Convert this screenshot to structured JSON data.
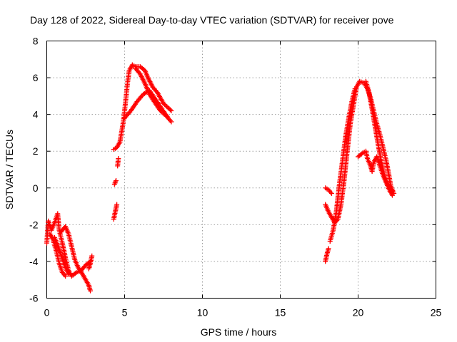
{
  "chart_data": {
    "type": "scatter",
    "title": "Day 128 of 2022, Sidereal Day-to-day VTEC variation (SDTVAR) for receiver pove",
    "xlabel": "GPS time / hours",
    "ylabel": "SDTVAR / TECUs",
    "xlim": [
      0,
      25
    ],
    "ylim": [
      -6,
      8
    ],
    "xticks": [
      0,
      5,
      10,
      15,
      20,
      25
    ],
    "yticks": [
      -6,
      -4,
      -2,
      0,
      2,
      4,
      6,
      8
    ],
    "grid": true,
    "legend": "none",
    "marker": "+",
    "series": [
      {
        "name": "SDTVAR",
        "color": "#ff0000",
        "segments": [
          [
            [
              0.0,
              -3.0
            ],
            [
              0.1,
              -1.8
            ],
            [
              0.3,
              -2.3
            ],
            [
              0.5,
              -1.9
            ],
            [
              0.7,
              -1.4
            ],
            [
              0.8,
              -2.3
            ],
            [
              1.0,
              -3.0
            ],
            [
              1.2,
              -3.8
            ],
            [
              1.4,
              -4.5
            ],
            [
              1.6,
              -4.8
            ],
            [
              1.9,
              -4.6
            ],
            [
              2.2,
              -4.5
            ],
            [
              2.5,
              -4.2
            ],
            [
              2.8,
              -4.0
            ]
          ],
          [
            [
              0.2,
              -2.5
            ],
            [
              0.4,
              -2.8
            ],
            [
              0.6,
              -3.4
            ],
            [
              0.8,
              -4.1
            ],
            [
              1.0,
              -4.6
            ],
            [
              1.2,
              -4.8
            ]
          ],
          [
            [
              0.9,
              -2.4
            ],
            [
              1.2,
              -2.1
            ],
            [
              1.4,
              -2.5
            ],
            [
              1.6,
              -3.2
            ],
            [
              1.8,
              -3.9
            ],
            [
              2.0,
              -4.3
            ],
            [
              2.3,
              -4.7
            ],
            [
              2.5,
              -5.0
            ],
            [
              2.7,
              -5.3
            ],
            [
              2.8,
              -5.6
            ]
          ],
          [
            [
              0.5,
              -2.7
            ],
            [
              0.7,
              -3.1
            ],
            [
              0.9,
              -3.6
            ],
            [
              1.1,
              -4.1
            ],
            [
              1.4,
              -4.7
            ]
          ],
          [
            [
              2.7,
              -4.4
            ],
            [
              2.8,
              -4.1
            ],
            [
              2.9,
              -3.7
            ]
          ],
          [
            [
              4.3,
              -1.7
            ],
            [
              4.4,
              -1.3
            ],
            [
              4.5,
              -0.9
            ]
          ],
          [
            [
              4.35,
              0.2
            ],
            [
              4.45,
              0.4
            ]
          ],
          [
            [
              4.55,
              1.2
            ],
            [
              4.6,
              1.6
            ]
          ],
          [
            [
              4.3,
              2.1
            ],
            [
              4.5,
              2.2
            ],
            [
              4.7,
              2.5
            ],
            [
              4.9,
              3.5
            ],
            [
              5.0,
              4.2
            ],
            [
              5.1,
              5.0
            ],
            [
              5.2,
              5.8
            ],
            [
              5.3,
              6.4
            ],
            [
              5.5,
              6.7
            ],
            [
              5.7,
              6.6
            ],
            [
              6.0,
              6.6
            ],
            [
              6.3,
              6.4
            ],
            [
              6.5,
              6.0
            ],
            [
              6.8,
              5.5
            ],
            [
              7.1,
              5.2
            ],
            [
              7.5,
              4.6
            ],
            [
              8.0,
              4.2
            ]
          ],
          [
            [
              5.0,
              3.8
            ],
            [
              5.4,
              4.2
            ],
            [
              5.8,
              4.7
            ],
            [
              6.2,
              5.1
            ],
            [
              6.6,
              5.3
            ],
            [
              7.0,
              4.8
            ],
            [
              7.4,
              4.3
            ],
            [
              7.8,
              3.8
            ],
            [
              8.0,
              3.6
            ]
          ],
          [
            [
              5.7,
              6.5
            ],
            [
              6.0,
              6.2
            ],
            [
              6.3,
              5.7
            ],
            [
              6.6,
              5.1
            ],
            [
              6.9,
              4.7
            ],
            [
              7.3,
              4.2
            ],
            [
              7.7,
              3.9
            ]
          ],
          [
            [
              17.9,
              -4.0
            ],
            [
              18.0,
              -3.6
            ],
            [
              18.1,
              -3.3
            ]
          ],
          [
            [
              17.9,
              -0.9
            ],
            [
              18.1,
              -1.3
            ],
            [
              18.3,
              -1.6
            ],
            [
              18.5,
              -1.9
            ],
            [
              18.7,
              -1.7
            ],
            [
              18.9,
              -0.9
            ],
            [
              19.1,
              0.4
            ],
            [
              19.3,
              2.0
            ],
            [
              19.5,
              3.5
            ],
            [
              19.7,
              4.5
            ],
            [
              19.9,
              5.5
            ],
            [
              20.1,
              5.8
            ],
            [
              20.4,
              5.7
            ],
            [
              20.6,
              5.4
            ],
            [
              20.8,
              4.9
            ],
            [
              21.0,
              4.2
            ],
            [
              21.2,
              3.5
            ],
            [
              21.4,
              2.9
            ],
            [
              21.6,
              2.2
            ],
            [
              21.8,
              1.5
            ],
            [
              22.0,
              0.6
            ],
            [
              22.1,
              0.1
            ],
            [
              22.3,
              -0.3
            ]
          ],
          [
            [
              17.9,
              0.0
            ],
            [
              18.1,
              -0.1
            ],
            [
              18.3,
              -0.3
            ]
          ],
          [
            [
              18.2,
              -2.9
            ],
            [
              18.4,
              -2.3
            ],
            [
              18.6,
              -1.3
            ],
            [
              18.8,
              0.2
            ],
            [
              19.0,
              1.5
            ],
            [
              19.2,
              2.8
            ],
            [
              19.4,
              3.8
            ],
            [
              19.6,
              4.7
            ],
            [
              19.8,
              5.4
            ]
          ],
          [
            [
              20.0,
              1.7
            ],
            [
              20.3,
              1.9
            ],
            [
              20.5,
              2.0
            ],
            [
              20.6,
              1.6
            ],
            [
              20.8,
              1.2
            ],
            [
              20.9,
              0.9
            ],
            [
              21.0,
              1.4
            ],
            [
              21.2,
              1.7
            ],
            [
              21.4,
              1.2
            ],
            [
              21.6,
              0.7
            ],
            [
              21.8,
              0.3
            ],
            [
              22.0,
              -0.1
            ],
            [
              22.2,
              -0.4
            ]
          ],
          [
            [
              20.5,
              5.8
            ],
            [
              20.7,
              5.2
            ],
            [
              20.9,
              4.3
            ],
            [
              21.1,
              3.3
            ],
            [
              21.3,
              2.3
            ],
            [
              21.5,
              1.4
            ],
            [
              21.7,
              0.6
            ],
            [
              21.9,
              0.2
            ],
            [
              22.2,
              -0.2
            ]
          ]
        ]
      }
    ]
  }
}
